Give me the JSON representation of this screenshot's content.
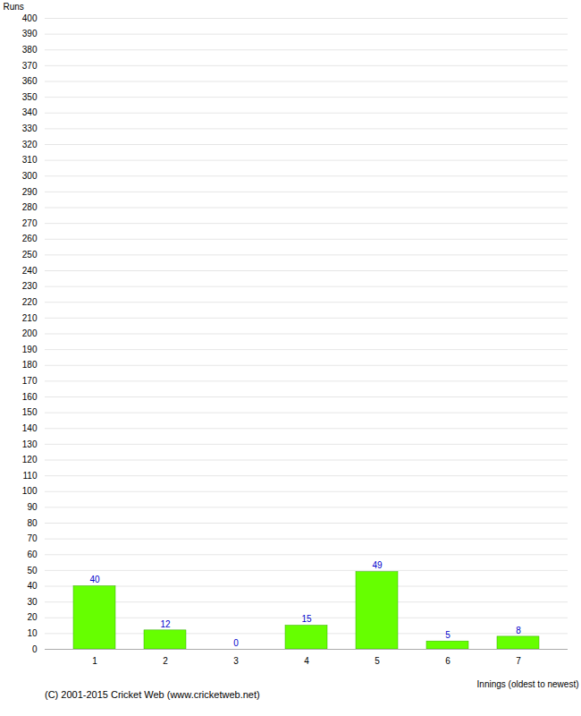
{
  "chart_data": {
    "type": "bar",
    "categories": [
      "1",
      "2",
      "3",
      "4",
      "5",
      "6",
      "7"
    ],
    "values": [
      40,
      12,
      0,
      15,
      49,
      5,
      8
    ],
    "color": "#66ff00",
    "xlabel": "Innings (oldest to newest)",
    "ylabel": "Runs",
    "caption": "(C) 2001-2015 Cricket Web (www.cricketweb.net)",
    "ylim": [
      0,
      400
    ],
    "yticks": [
      0,
      10,
      20,
      30,
      40,
      50,
      60,
      70,
      80,
      90,
      100,
      110,
      120,
      130,
      140,
      150,
      160,
      170,
      180,
      190,
      200,
      210,
      220,
      230,
      240,
      250,
      260,
      270,
      280,
      290,
      300,
      310,
      320,
      330,
      340,
      350,
      360,
      370,
      380,
      390,
      400
    ],
    "grid": true,
    "data_labels": true
  }
}
